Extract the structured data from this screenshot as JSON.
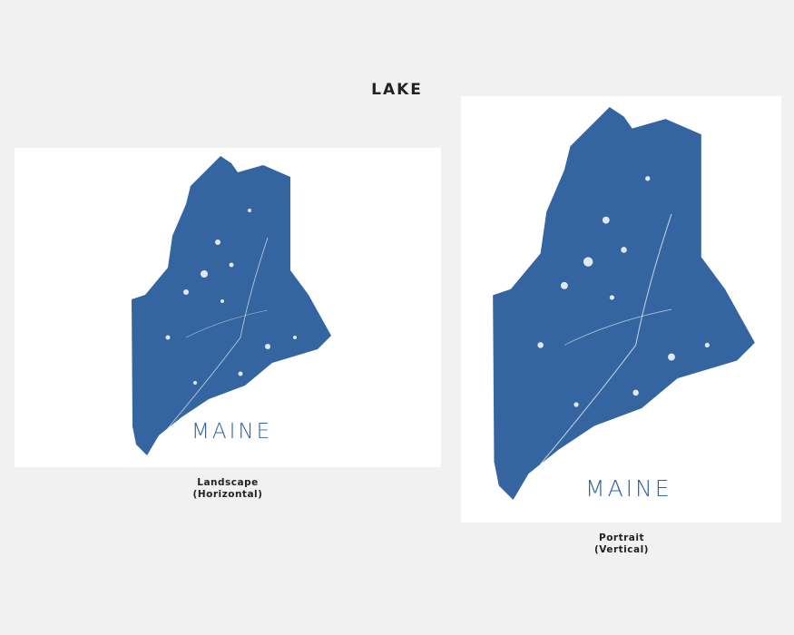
{
  "header": {
    "title": "LAKE"
  },
  "colors": {
    "map_fill": "#3465a0",
    "background": "#f0f1f0",
    "card": "#ffffff"
  },
  "prints": [
    {
      "map_label": "MAINE",
      "caption_line1": "Landscape",
      "caption_line2": "(Horizontal)"
    },
    {
      "map_label": "MAINE",
      "caption_line1": "Portrait",
      "caption_line2": "(Vertical)"
    }
  ]
}
